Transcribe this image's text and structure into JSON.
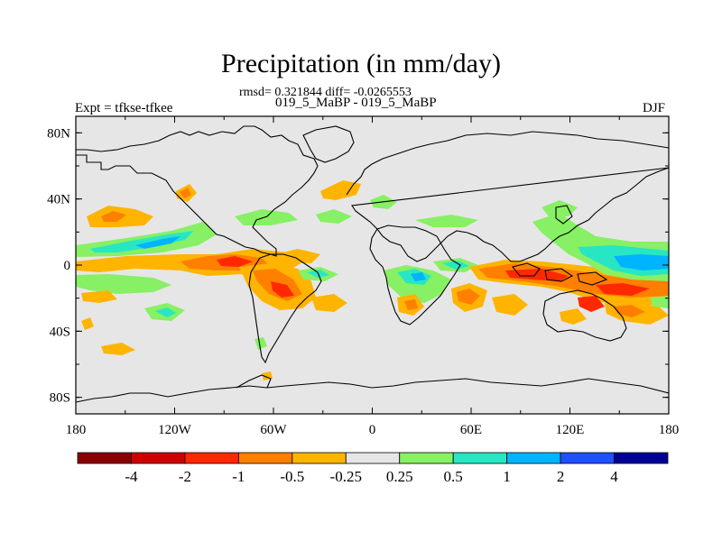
{
  "header": {
    "title": "Precipitation (in mm/day)",
    "stats": "rmsd= 0.321844 diff= -0.0265553",
    "cases": "019_5_MaBP - 019_5_MaBP",
    "expt": "Expt = tfkse-tfkee",
    "season": "DJF"
  },
  "map": {
    "projection": "cylindrical equidistant",
    "lon_range": [
      -180,
      180
    ],
    "lat_range": [
      -90,
      90
    ],
    "lat_labels": [
      "80N",
      "40N",
      "0",
      "40S",
      "80S"
    ],
    "lon_labels": [
      "180",
      "120W",
      "60W",
      "0",
      "60E",
      "120E",
      "180"
    ],
    "background_color": "#e6e6e6",
    "coastline_color": "#000000"
  },
  "colorbar": {
    "labels": [
      "-4",
      "-2",
      "-1",
      "-0.5",
      "-0.25",
      "0.25",
      "0.5",
      "1",
      "2",
      "4"
    ],
    "colors": [
      "#8b0000",
      "#cd0000",
      "#ff2800",
      "#ff7f00",
      "#ffb400",
      "#e6e6e6",
      "#87f064",
      "#28e6c3",
      "#00b4ff",
      "#1e50ff",
      "#000096"
    ]
  }
}
